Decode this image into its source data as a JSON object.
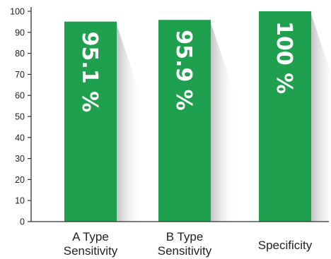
{
  "chart_data": {
    "type": "bar",
    "categories": [
      [
        "A Type",
        "Sensitivity"
      ],
      [
        "B Type",
        "Sensitivity"
      ],
      [
        "Specificity"
      ]
    ],
    "values": [
      95.1,
      95.9,
      100
    ],
    "data_labels": [
      "95.1 %",
      "95.9 %",
      "100 %"
    ],
    "ylim": [
      0,
      100
    ],
    "yticks": [
      "0",
      "10",
      "20",
      "30",
      "40",
      "50",
      "60",
      "70",
      "80",
      "90",
      "100"
    ],
    "title": "",
    "xlabel": "",
    "ylabel": "",
    "grid": false,
    "legend": "none",
    "colors": {
      "bar": "#1ea04f",
      "axis": "#333333",
      "text": "#222222",
      "shadow": "#bdbdbd"
    }
  }
}
